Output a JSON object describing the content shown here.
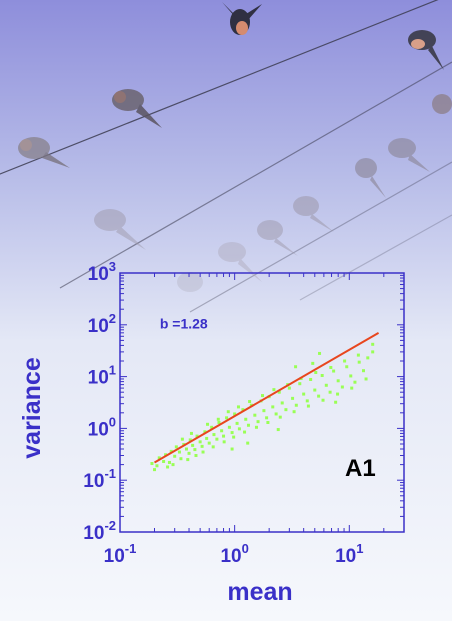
{
  "chart_data": {
    "type": "scatter",
    "x_scale": "log",
    "y_scale": "log",
    "xlabel": "mean",
    "ylabel": "variance",
    "xlim": [
      0.1,
      30
    ],
    "ylim": [
      0.01,
      1000
    ],
    "x_ticks": [
      {
        "value": 0.1,
        "base": "10",
        "exp": "-1"
      },
      {
        "value": 1,
        "base": "10",
        "exp": "0"
      },
      {
        "value": 10,
        "base": "10",
        "exp": "1"
      }
    ],
    "y_ticks": [
      {
        "value": 0.01,
        "base": "10",
        "exp": "-2"
      },
      {
        "value": 0.1,
        "base": "10",
        "exp": "-1"
      },
      {
        "value": 1,
        "base": "10",
        "exp": "0"
      },
      {
        "value": 10,
        "base": "10",
        "exp": "1"
      },
      {
        "value": 100,
        "base": "10",
        "exp": "2"
      },
      {
        "value": 1000,
        "base": "10",
        "exp": "3"
      }
    ],
    "fit_line": {
      "x": [
        0.2,
        18
      ],
      "y": [
        0.22,
        70
      ],
      "slope": 1.28
    },
    "points": [
      [
        0.21,
        0.19
      ],
      [
        0.22,
        0.27
      ],
      [
        0.24,
        0.23
      ],
      [
        0.25,
        0.31
      ],
      [
        0.27,
        0.22
      ],
      [
        0.28,
        0.36
      ],
      [
        0.3,
        0.29
      ],
      [
        0.31,
        0.44
      ],
      [
        0.33,
        0.35
      ],
      [
        0.34,
        0.26
      ],
      [
        0.36,
        0.49
      ],
      [
        0.38,
        0.4
      ],
      [
        0.4,
        0.33
      ],
      [
        0.41,
        0.6
      ],
      [
        0.43,
        0.47
      ],
      [
        0.45,
        0.39
      ],
      [
        0.47,
        0.71
      ],
      [
        0.5,
        0.55
      ],
      [
        0.52,
        0.45
      ],
      [
        0.55,
        0.86
      ],
      [
        0.57,
        0.64
      ],
      [
        0.6,
        0.52
      ],
      [
        0.63,
        1.05
      ],
      [
        0.66,
        0.76
      ],
      [
        0.7,
        0.62
      ],
      [
        0.73,
        1.3
      ],
      [
        0.77,
        0.9
      ],
      [
        0.8,
        0.71
      ],
      [
        0.85,
        1.6
      ],
      [
        0.9,
        1.05
      ],
      [
        0.95,
        0.83
      ],
      [
        1.0,
        1.9
      ],
      [
        1.05,
        1.25
      ],
      [
        1.1,
        0.98
      ],
      [
        1.18,
        2.3
      ],
      [
        1.25,
        1.5
      ],
      [
        1.32,
        1.15
      ],
      [
        1.4,
        2.8
      ],
      [
        1.5,
        1.8
      ],
      [
        1.6,
        1.35
      ],
      [
        1.7,
        3.4
      ],
      [
        1.8,
        2.2
      ],
      [
        1.9,
        1.6
      ],
      [
        2.0,
        4.1
      ],
      [
        2.15,
        2.6
      ],
      [
        2.3,
        1.9
      ],
      [
        2.45,
        5.0
      ],
      [
        2.6,
        3.1
      ],
      [
        2.8,
        2.3
      ],
      [
        3.0,
        6.0
      ],
      [
        3.2,
        3.8
      ],
      [
        3.45,
        2.8
      ],
      [
        3.7,
        7.3
      ],
      [
        4.0,
        4.6
      ],
      [
        4.3,
        3.4
      ],
      [
        4.6,
        8.8
      ],
      [
        5.0,
        5.5
      ],
      [
        5.4,
        4.2
      ],
      [
        5.8,
        10.5
      ],
      [
        6.3,
        6.8
      ],
      [
        6.8,
        5.0
      ],
      [
        7.3,
        12.8
      ],
      [
        8.0,
        8.3
      ],
      [
        8.7,
        6.3
      ],
      [
        9.5,
        15.5
      ],
      [
        10.3,
        10.3
      ],
      [
        11.2,
        7.8
      ],
      [
        12.2,
        19
      ],
      [
        13.3,
        13
      ],
      [
        14.5,
        23
      ],
      [
        0.19,
        0.21
      ],
      [
        0.2,
        0.16
      ],
      [
        0.26,
        0.18
      ],
      [
        0.29,
        0.2
      ],
      [
        0.35,
        0.62
      ],
      [
        0.39,
        0.25
      ],
      [
        0.42,
        0.8
      ],
      [
        0.46,
        0.3
      ],
      [
        0.53,
        0.35
      ],
      [
        0.58,
        1.2
      ],
      [
        0.65,
        0.44
      ],
      [
        0.72,
        1.5
      ],
      [
        0.81,
        0.55
      ],
      [
        0.88,
        2.1
      ],
      [
        0.98,
        0.68
      ],
      [
        1.08,
        2.6
      ],
      [
        1.22,
        0.85
      ],
      [
        1.35,
        3.3
      ],
      [
        1.55,
        1.05
      ],
      [
        1.75,
        4.3
      ],
      [
        1.95,
        1.3
      ],
      [
        2.2,
        5.6
      ],
      [
        2.5,
        1.65
      ],
      [
        2.9,
        7.0
      ],
      [
        3.3,
        2.1
      ],
      [
        3.8,
        9.2
      ],
      [
        4.4,
        2.7
      ],
      [
        5.1,
        12
      ],
      [
        5.9,
        3.5
      ],
      [
        6.9,
        15
      ],
      [
        7.9,
        4.6
      ],
      [
        9.1,
        20
      ],
      [
        10.5,
        6.0
      ],
      [
        12.0,
        26
      ],
      [
        14,
        9
      ],
      [
        16,
        30
      ],
      [
        5.5,
        28
      ],
      [
        3.4,
        15.5
      ],
      [
        2.4,
        0.95
      ],
      [
        7.6,
        3.2
      ],
      [
        1.3,
        0.52
      ],
      [
        0.95,
        0.4
      ],
      [
        4.8,
        18
      ],
      [
        16,
        42
      ]
    ],
    "annotations": [
      {
        "text": "b =1.28",
        "x": 0.36,
        "y": 85
      },
      {
        "text": "A1",
        "x": 17,
        "y": 0.12
      }
    ],
    "colors": {
      "points": "#99ff55",
      "fit_line": "#e8461e",
      "axis": "#3a30c8"
    }
  }
}
